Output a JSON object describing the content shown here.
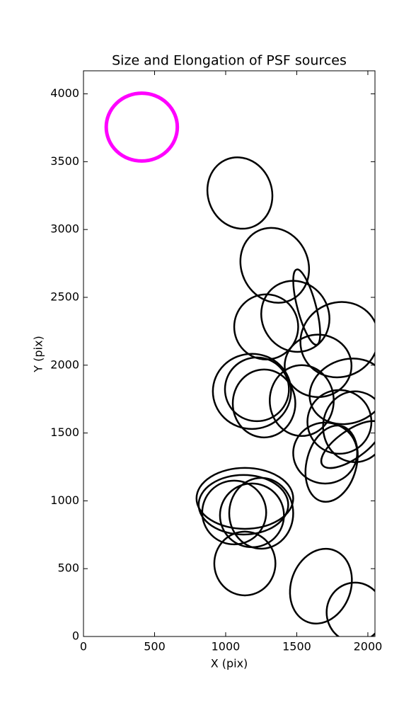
{
  "chart_data": {
    "type": "ellipse",
    "title": "Size and Elongation of PSF sources",
    "x_label": "X (pix)",
    "y_label": "Y (pix)",
    "xlim": [
      0,
      2050
    ],
    "ylim": [
      0,
      4170
    ],
    "xticks": [
      0,
      500,
      1000,
      1500,
      2000
    ],
    "yticks": [
      0,
      500,
      1000,
      1500,
      2000,
      2500,
      3000,
      3500,
      4000
    ],
    "series": [
      {
        "color": "#ff00ff",
        "linewidth": 5,
        "x": [
          410
        ],
        "y": [
          3755
        ],
        "width": [
          500
        ],
        "height": [
          500
        ],
        "angle": [
          0
        ]
      },
      {
        "color": "#000000",
        "linewidth": 2.5,
        "x": [
          1100,
          1345,
          1570,
          1490,
          1285,
          1800,
          1650,
          1185,
          1220,
          1270,
          1535,
          1860,
          1800,
          1910,
          1885,
          1700,
          1745,
          1135,
          1125,
          1185,
          1250,
          1060,
          1135,
          1670,
          1910
        ],
        "y": [
          3269,
          2736,
          2428,
          2360,
          2282,
          2188,
          1995,
          1807,
          1822,
          1718,
          1739,
          1807,
          1582,
          1546,
          1415,
          1352,
          1274,
          1018,
          971,
          893,
          908,
          914,
          538,
          371,
          178
        ],
        "width": [
          450,
          470,
          130,
          470,
          450,
          520,
          470,
          550,
          450,
          440,
          450,
          550,
          450,
          450,
          500,
          450,
          350,
          680,
          630,
          450,
          450,
          450,
          430,
          420,
          400
        ],
        "height": [
          533,
          564,
          574,
          533,
          480,
          585,
          460,
          554,
          470,
          501,
          522,
          470,
          470,
          522,
          209,
          449,
          574,
          449,
          439,
          470,
          522,
          470,
          470,
          564,
          439
        ],
        "angle": [
          -20,
          -25,
          -15,
          -30,
          0,
          60,
          0,
          0,
          0,
          0,
          0,
          -20,
          0,
          0,
          -35,
          0,
          15,
          0,
          0,
          0,
          0,
          0,
          0,
          20,
          0
        ]
      }
    ]
  }
}
